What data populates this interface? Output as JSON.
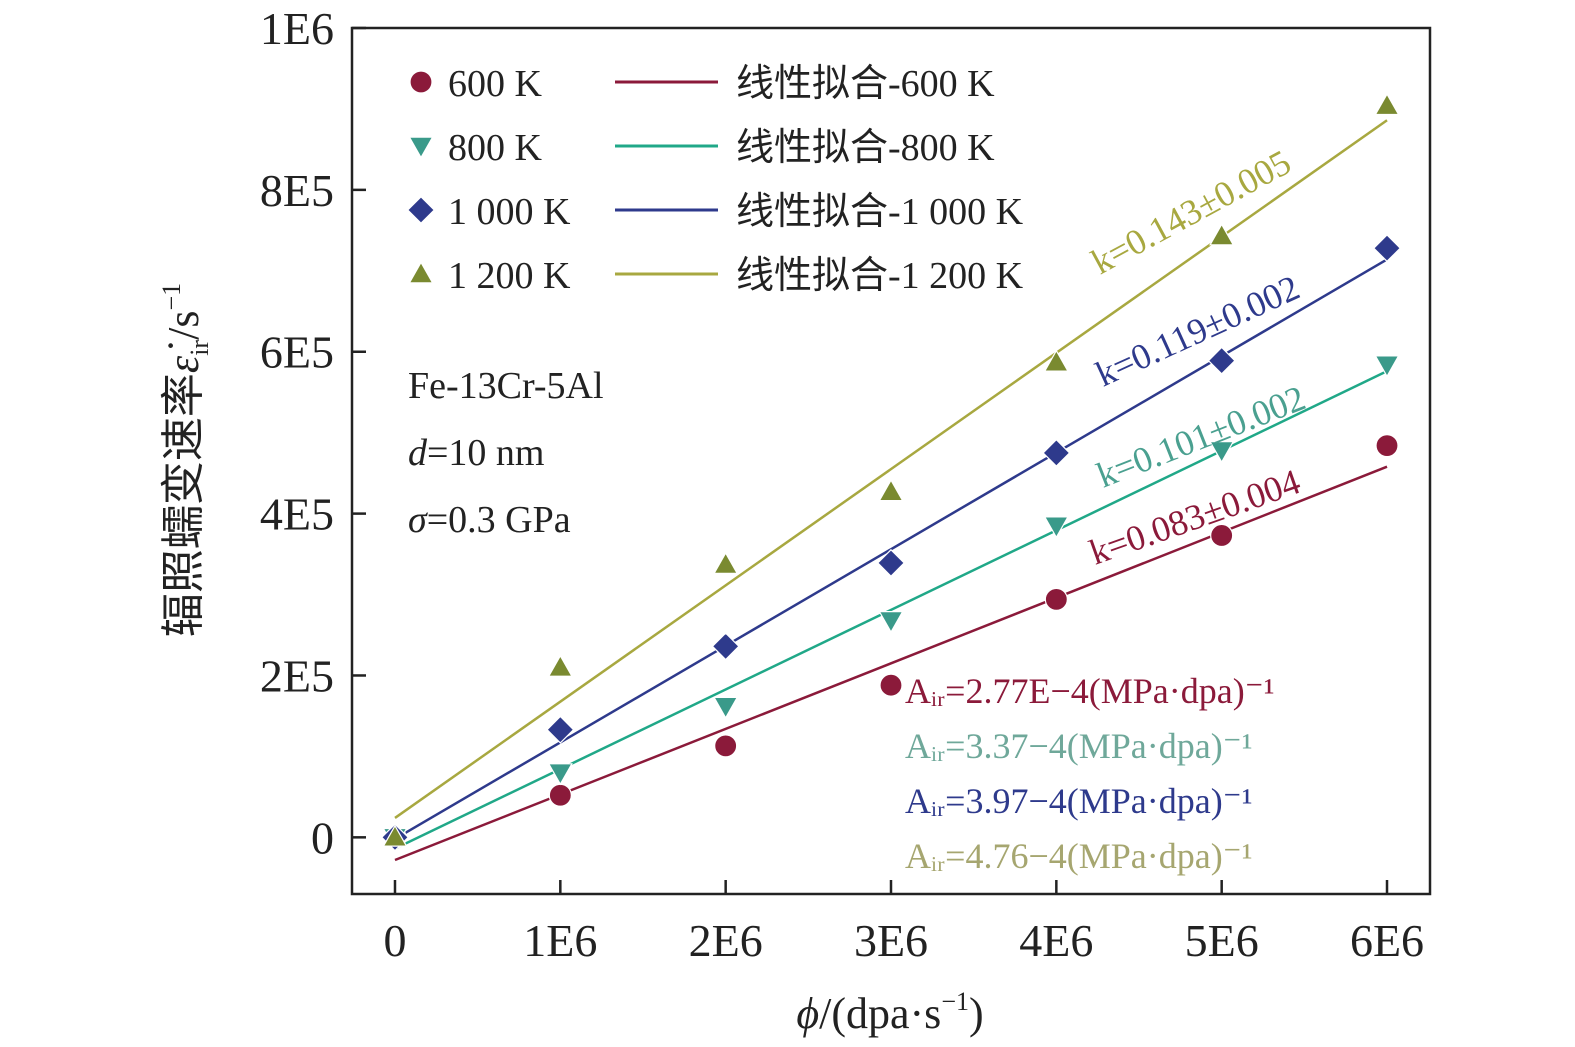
{
  "chart_data": {
    "type": "scatter",
    "xlabel": "ϕ/(dpa·s⁻¹)",
    "ylabel": "辐照蠕变速率ε̇ir/s⁻¹",
    "xlim": [
      -260000,
      6260000
    ],
    "ylim": [
      -70000,
      1000000
    ],
    "x_ticks": [
      0,
      1000000,
      2000000,
      3000000,
      4000000,
      5000000,
      6000000
    ],
    "x_tick_labels": [
      "0",
      "1E6",
      "2E6",
      "3E6",
      "4E6",
      "5E6",
      "6E6"
    ],
    "y_ticks": [
      0,
      200000,
      400000,
      600000,
      800000,
      1000000
    ],
    "y_tick_labels": [
      "0",
      "2E5",
      "4E5",
      "6E5",
      "8E5",
      "1E6"
    ],
    "grid": false,
    "legend_position": "top-left",
    "series": [
      {
        "name": "600 K",
        "fit_name": "线性拟合-600 K",
        "marker": "circle",
        "color": "#8b1a3a",
        "fit_color": "#8b1a3a",
        "x": [
          0,
          1000000,
          2000000,
          3000000,
          4000000,
          5000000,
          6000000
        ],
        "y": [
          0,
          52000,
          113000,
          188000,
          294000,
          373000,
          484000
        ],
        "fit": [
          [
            0,
            -28000
          ],
          [
            6000000,
            458000
          ]
        ],
        "slope_label": "k=0.083±0.004",
        "slope_color": "#8b1a3a",
        "air_label": "Aᵢᵣ=2.77E−4(MPa·dpa)⁻¹",
        "air_color": "#8b1a3a"
      },
      {
        "name": "800 K",
        "fit_name": "线性拟合-800 K",
        "marker": "triangle-down",
        "color": "#3a9a8a",
        "fit_color": "#20a888",
        "x": [
          0,
          1000000,
          2000000,
          3000000,
          4000000,
          5000000,
          6000000
        ],
        "y": [
          0,
          80000,
          162000,
          268000,
          385000,
          478000,
          584000
        ],
        "fit": [
          [
            0,
            -14000
          ],
          [
            6000000,
            576000
          ]
        ],
        "slope_label": "k=0.101±0.002",
        "slope_color": "#4aa090",
        "air_label": "Aᵢᵣ=3.37−4(MPa·dpa)⁻¹",
        "air_color": "#6fa89a"
      },
      {
        "name": "1 000 K",
        "fit_name": "线性拟合-1 000 K",
        "marker": "diamond",
        "color": "#2e3a8c",
        "fit_color": "#2e3a8c",
        "x": [
          0,
          1000000,
          2000000,
          3000000,
          4000000,
          5000000,
          6000000
        ],
        "y": [
          0,
          133000,
          236000,
          339000,
          475000,
          589000,
          728000
        ],
        "fit": [
          [
            0,
            -2000
          ],
          [
            6000000,
            714000
          ]
        ],
        "slope_label": "k=0.119±0.002",
        "slope_color": "#2e3a8c",
        "air_label": "Aᵢᵣ=3.97−4(MPa·dpa)⁻¹",
        "air_color": "#2e3a8c"
      },
      {
        "name": "1 200 K",
        "fit_name": "线性拟合-1 200 K",
        "marker": "triangle-up",
        "color": "#7a8a30",
        "fit_color": "#a8a840",
        "x": [
          0,
          1000000,
          2000000,
          3000000,
          4000000,
          5000000,
          6000000
        ],
        "y": [
          0,
          210000,
          337000,
          427000,
          587000,
          743000,
          904000
        ],
        "fit": [
          [
            0,
            24000
          ],
          [
            6000000,
            886000
          ]
        ],
        "slope_label": "k=0.143±0.005",
        "slope_color": "#a8a840",
        "air_label": "Aᵢᵣ=4.76−4(MPa·dpa)⁻¹",
        "air_color": "#a6a670"
      }
    ],
    "annotations": [
      "Fe-13Cr-5Al",
      "d=10 nm",
      "σ=0.3 GPa"
    ]
  }
}
